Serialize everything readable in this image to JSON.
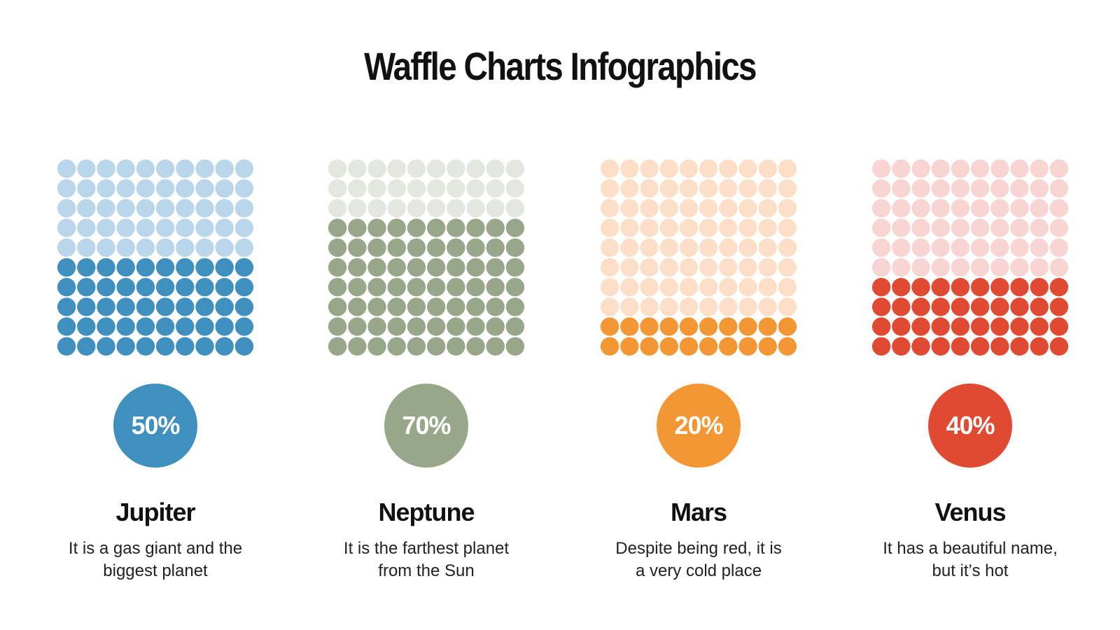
{
  "title": "Waffle Charts Infographics",
  "chart_data": [
    {
      "type": "waffle",
      "title": "Jupiter",
      "description": "It is a gas giant and the biggest planet",
      "values": [
        50
      ],
      "value_labels": [
        "50%"
      ],
      "color": "#3f8fbf",
      "empty_color": "#b9d6ea"
    },
    {
      "type": "waffle",
      "title": "Neptune",
      "description": "It is the farthest planet from the Sun",
      "values": [
        70
      ],
      "value_labels": [
        "70%"
      ],
      "color": "#98a68a",
      "empty_color": "#e3e7e0"
    },
    {
      "type": "waffle",
      "title": "Mars",
      "description": "Despite being red, it is a very cold place",
      "values": [
        20
      ],
      "value_labels": [
        "20%"
      ],
      "color": "#f39634",
      "empty_color": "#fddfc7"
    },
    {
      "type": "waffle",
      "title": "Venus",
      "description": "It has a beautiful name, but it’s hot",
      "values": [
        40
      ],
      "value_labels": [
        "40%"
      ],
      "color": "#e04a33",
      "empty_color": "#f8d5d2"
    }
  ]
}
